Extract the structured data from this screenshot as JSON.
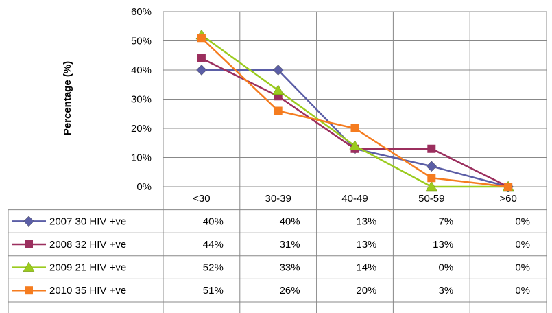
{
  "chart_data": {
    "type": "line",
    "title": "",
    "xlabel": "",
    "ylabel": "Percentage (%)",
    "ylim": [
      0,
      60
    ],
    "y_ticks": [
      "0%",
      "10%",
      "20%",
      "30%",
      "40%",
      "50%",
      "60%"
    ],
    "y_tick_values": [
      0,
      10,
      20,
      30,
      40,
      50,
      60
    ],
    "categories": [
      "<30",
      "30-39",
      "40-49",
      "50-59",
      ">60"
    ],
    "grid": true,
    "legend_placement": "data-table-left",
    "series": [
      {
        "name": "2007 30 HIV +ve",
        "color": "#5B5EA6",
        "marker": "diamond",
        "values": [
          40,
          40,
          13,
          7,
          0
        ],
        "labels": [
          "40%",
          "40%",
          "13%",
          "7%",
          "0%"
        ]
      },
      {
        "name": "2008 32 HIV +ve",
        "color": "#9B2F5E",
        "marker": "square",
        "values": [
          44,
          31,
          13,
          13,
          0
        ],
        "labels": [
          "44%",
          "31%",
          "13%",
          "13%",
          "0%"
        ]
      },
      {
        "name": "2009 21 HIV +ve",
        "color": "#9BCB1E",
        "marker": "triangle",
        "values": [
          52,
          33,
          14,
          0,
          0
        ],
        "labels": [
          "52%",
          "33%",
          "14%",
          "0%",
          "0%"
        ]
      },
      {
        "name": "2010 35 HIV +ve",
        "color": "#F57C1F",
        "marker": "square",
        "values": [
          51,
          26,
          20,
          3,
          0
        ],
        "labels": [
          "51%",
          "26%",
          "20%",
          "3%",
          "0%"
        ]
      }
    ]
  }
}
